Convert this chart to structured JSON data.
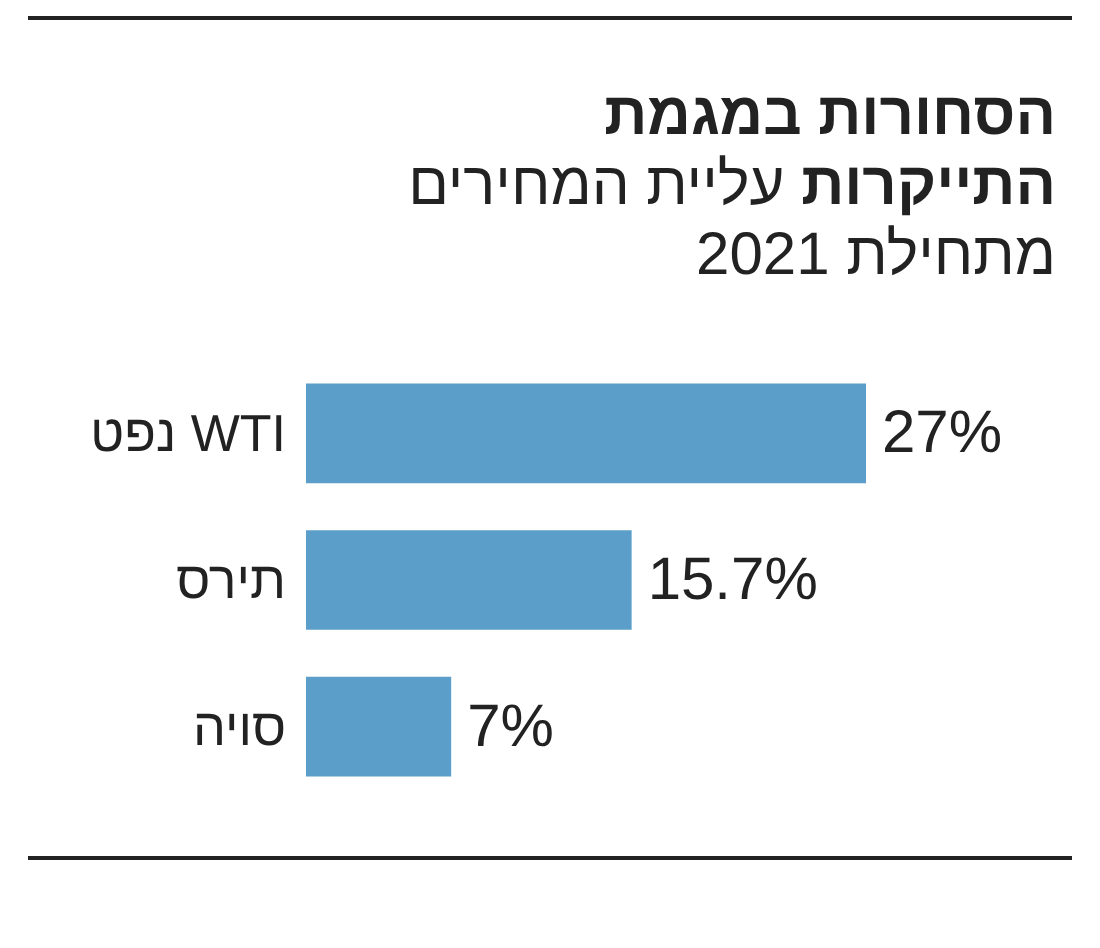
{
  "chart_data": {
    "type": "bar",
    "orientation": "horizontal",
    "title": "הסחורות במגמת התייקרות",
    "subtitle": "עליית המחירים מתחילת 2021",
    "categories": [
      "נפט WTI",
      "תירס",
      "סויה"
    ],
    "values": [
      27,
      15.7,
      7
    ],
    "value_labels": [
      "27%",
      "15.7%",
      "7%"
    ],
    "color": "#5b9ec9"
  }
}
